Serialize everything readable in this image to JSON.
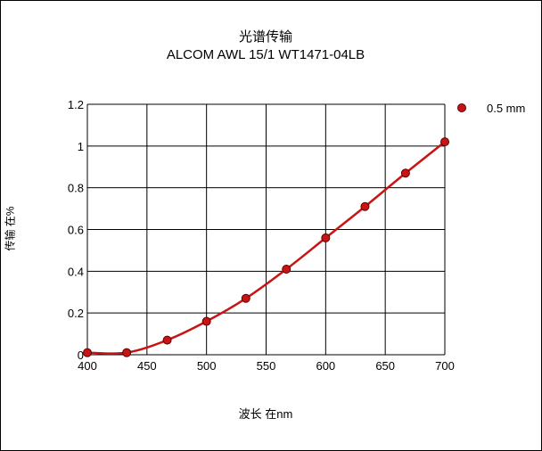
{
  "chart_data": {
    "type": "line",
    "title": "光谱传输",
    "subtitle": "ALCOM AWL 15/1  WT1471-04LB",
    "xlabel": "波长 在nm",
    "ylabel": "传输 在%",
    "xlim": [
      400,
      700
    ],
    "ylim": [
      0,
      1.2
    ],
    "xticks": [
      "400",
      "450",
      "500",
      "550",
      "600",
      "650",
      "700"
    ],
    "yticks": [
      "0",
      "0.2",
      "0.4",
      "0.6",
      "0.8",
      "1",
      "1.2"
    ],
    "grid": true,
    "legend_position": "top-right",
    "series": [
      {
        "name": "0.5 mm",
        "color": "#c81414",
        "x": [
          400,
          433,
          467,
          500,
          533,
          567,
          600,
          633,
          667,
          700
        ],
        "y": [
          0.01,
          0.01,
          0.07,
          0.16,
          0.27,
          0.41,
          0.56,
          0.71,
          0.87,
          1.02
        ]
      }
    ]
  }
}
